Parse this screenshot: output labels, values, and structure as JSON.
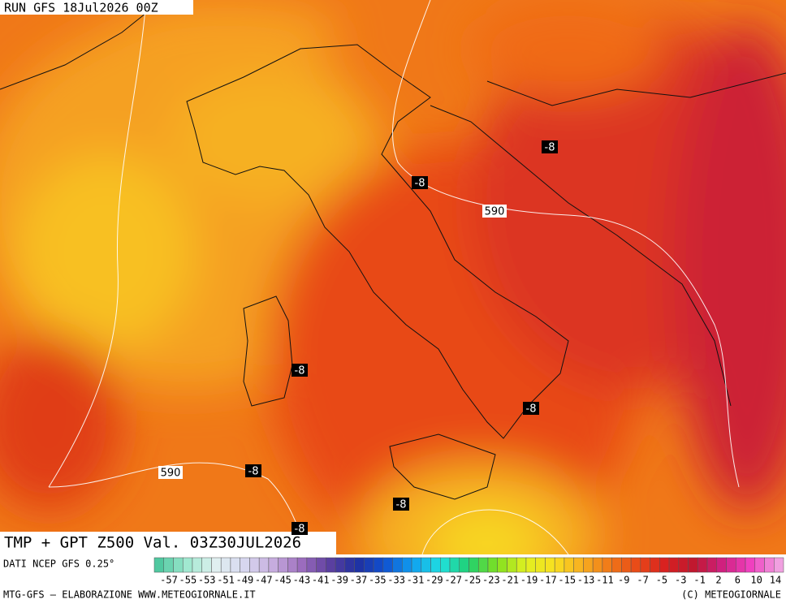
{
  "header": {
    "run": "RUN GFS 18Jul2026 00Z"
  },
  "map": {
    "temp_labels": [
      "-8",
      "-8",
      "-8",
      "-8",
      "-8",
      "-8",
      "-8"
    ],
    "gpt_labels": [
      "590",
      "590"
    ]
  },
  "footer": {
    "title": "TMP + GPT Z500 Val. 03Z30JUL2026",
    "source": "DATI NCEP GFS 0.25°",
    "credit_left": "MTG-GFS — ELABORAZIONE WWW.METEOGIORNALE.IT",
    "credit_right": "(C) METEOGIORNALE"
  },
  "colorbar": {
    "labels": [
      -57,
      -55,
      -53,
      -51,
      -49,
      -47,
      -45,
      -43,
      -41,
      -39,
      -37,
      -35,
      -33,
      -31,
      -29,
      -27,
      -25,
      -23,
      -21,
      -19,
      -17,
      -15,
      -13,
      -11,
      -9,
      -7,
      -5,
      -3,
      -1,
      2,
      6,
      10,
      14
    ]
  }
}
